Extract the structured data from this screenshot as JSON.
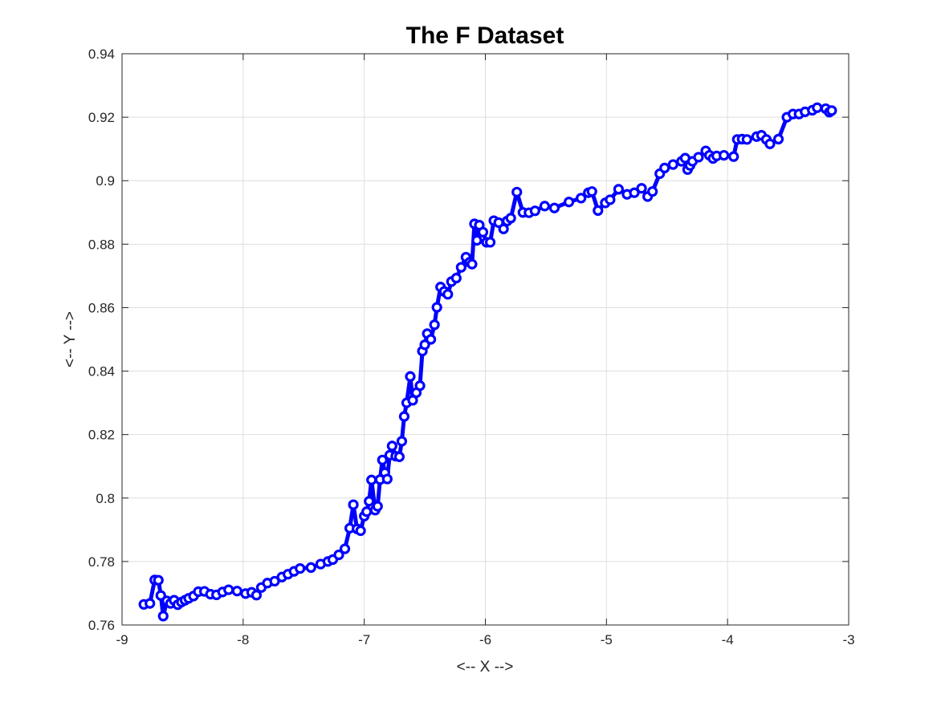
{
  "chart_data": {
    "type": "line",
    "title": "The F Dataset",
    "xlabel": "<-- X -->",
    "ylabel": "<-- Y -->",
    "xlim": [
      -9,
      -3
    ],
    "ylim": [
      0.76,
      0.94
    ],
    "xticks": [
      -9,
      -8,
      -7,
      -6,
      -5,
      -4,
      -3
    ],
    "xtick_labels": [
      "-9",
      "-8",
      "-7",
      "-6",
      "-5",
      "-4",
      "-3"
    ],
    "yticks": [
      0.76,
      0.78,
      0.8,
      0.82,
      0.84,
      0.86,
      0.88,
      0.9,
      0.92,
      0.94
    ],
    "ytick_labels": [
      "0.76",
      "0.78",
      "0.8",
      "0.82",
      "0.84",
      "0.86",
      "0.88",
      "0.9",
      "0.92",
      "0.94"
    ],
    "grid": true,
    "line_color": "#0000ff",
    "marker": "circle",
    "series": [
      {
        "x": [
          -8.82,
          -8.77,
          -8.73,
          -8.7,
          -8.68,
          -8.66,
          -8.63,
          -8.6,
          -8.57,
          -8.54,
          -8.51,
          -8.48,
          -8.45,
          -8.41,
          -8.37,
          -8.32,
          -8.27,
          -8.22,
          -8.17,
          -8.12,
          -8.05,
          -7.98,
          -7.93,
          -7.89,
          -7.85,
          -7.8,
          -7.74,
          -7.68,
          -7.63,
          -7.58,
          -7.53,
          -7.44,
          -7.36,
          -7.3,
          -7.26,
          -7.21,
          -7.16,
          -7.12,
          -7.09,
          -7.06,
          -7.03,
          -7.0,
          -6.98,
          -6.96,
          -6.94,
          -6.91,
          -6.89,
          -6.87,
          -6.85,
          -6.83,
          -6.81,
          -6.79,
          -6.77,
          -6.74,
          -6.71,
          -6.69,
          -6.67,
          -6.65,
          -6.62,
          -6.6,
          -6.57,
          -6.54,
          -6.52,
          -6.5,
          -6.48,
          -6.45,
          -6.42,
          -6.4,
          -6.37,
          -6.34,
          -6.31,
          -6.28,
          -6.24,
          -6.2,
          -6.16,
          -6.13,
          -6.11,
          -6.09,
          -6.07,
          -6.05,
          -6.02,
          -5.99,
          -5.96,
          -5.93,
          -5.89,
          -5.85,
          -5.82,
          -5.79,
          -5.74,
          -5.69,
          -5.64,
          -5.59,
          -5.51,
          -5.43,
          -5.31,
          -5.21,
          -5.15,
          -5.12,
          -5.07,
          -5.01,
          -4.97,
          -4.9,
          -4.83,
          -4.77,
          -4.71,
          -4.66,
          -4.62,
          -4.56,
          -4.52,
          -4.45,
          -4.38,
          -4.35,
          -4.33,
          -4.31,
          -4.29,
          -4.24,
          -4.18,
          -4.15,
          -4.12,
          -4.09,
          -4.03,
          -3.95,
          -3.92,
          -3.88,
          -3.84,
          -3.76,
          -3.72,
          -3.68,
          -3.65,
          -3.58,
          -3.51,
          -3.46,
          -3.41,
          -3.36,
          -3.3,
          -3.26,
          -3.19,
          -3.16,
          -3.14
        ],
        "y": [
          0.7665,
          0.7668,
          0.7742,
          0.7741,
          0.7693,
          0.7628,
          0.7676,
          0.7668,
          0.7678,
          0.7664,
          0.7672,
          0.7678,
          0.7684,
          0.7691,
          0.7705,
          0.7706,
          0.7697,
          0.7695,
          0.7704,
          0.7711,
          0.7707,
          0.7699,
          0.7703,
          0.7694,
          0.7718,
          0.7732,
          0.7738,
          0.7751,
          0.776,
          0.7769,
          0.7778,
          0.7781,
          0.7792,
          0.78,
          0.7806,
          0.7821,
          0.784,
          0.7905,
          0.7979,
          0.7903,
          0.7897,
          0.7943,
          0.7957,
          0.799,
          0.8057,
          0.7962,
          0.7974,
          0.8058,
          0.812,
          0.808,
          0.806,
          0.8135,
          0.8164,
          0.8132,
          0.813,
          0.8179,
          0.8257,
          0.83,
          0.8383,
          0.8308,
          0.8332,
          0.8354,
          0.8463,
          0.8483,
          0.8518,
          0.85,
          0.8546,
          0.8601,
          0.8665,
          0.8651,
          0.8642,
          0.8682,
          0.8693,
          0.8727,
          0.8759,
          0.8743,
          0.8737,
          0.8864,
          0.8812,
          0.886,
          0.8838,
          0.8806,
          0.8806,
          0.8874,
          0.8868,
          0.8848,
          0.8873,
          0.8882,
          0.8964,
          0.89,
          0.8899,
          0.8905,
          0.892,
          0.8914,
          0.8933,
          0.8945,
          0.8962,
          0.8966,
          0.8906,
          0.893,
          0.894,
          0.8973,
          0.8957,
          0.8962,
          0.8976,
          0.895,
          0.8966,
          0.9022,
          0.904,
          0.9051,
          0.9061,
          0.9071,
          0.9035,
          0.9048,
          0.9061,
          0.9074,
          0.9094,
          0.908,
          0.907,
          0.9078,
          0.908,
          0.9076,
          0.913,
          0.9131,
          0.913,
          0.9139,
          0.9143,
          0.913,
          0.9116,
          0.9131,
          0.92,
          0.921,
          0.921,
          0.9217,
          0.9222,
          0.923,
          0.9227,
          0.9216,
          0.9221
        ]
      }
    ]
  }
}
